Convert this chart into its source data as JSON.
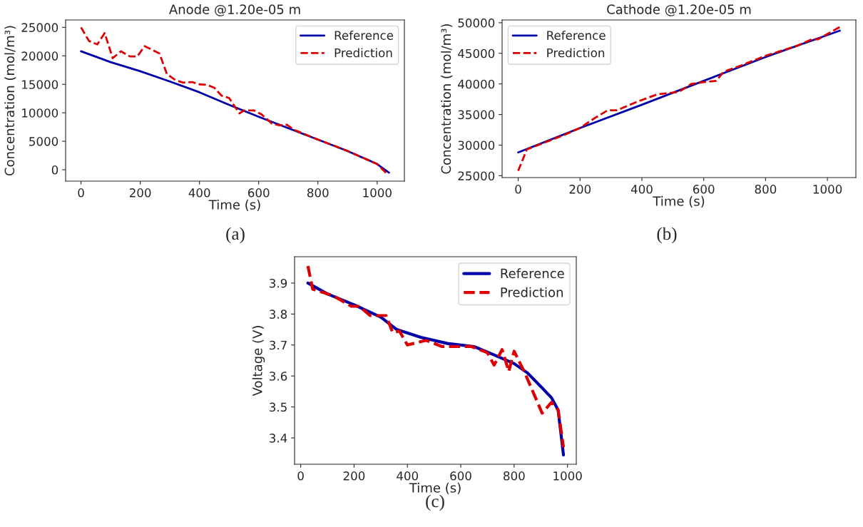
{
  "chart_data": [
    {
      "type": "line",
      "title": "Anode @1.20e-05 m",
      "xlabel": "Time (s)",
      "ylabel": "Concentration (mol/m³)",
      "annotations": [
        "(a)"
      ],
      "xlim": [
        -52,
        1092
      ],
      "ylim": [
        -2000,
        26300
      ],
      "xticks": [
        0,
        200,
        400,
        600,
        800,
        1000
      ],
      "yticks": [
        0,
        5000,
        10000,
        15000,
        20000,
        25000
      ],
      "grid": false,
      "legend": "top right",
      "series": [
        {
          "name": "Reference",
          "color": "#0000aa",
          "line_style": "solid",
          "x": [
            0,
            100,
            200,
            300,
            400,
            500,
            600,
            700,
            800,
            900,
            1000,
            1040
          ],
          "values": [
            20800,
            18900,
            17300,
            15500,
            13600,
            11400,
            9300,
            7300,
            5300,
            3300,
            1000,
            -500
          ]
        },
        {
          "name": "Prediction",
          "color": "#dd0000",
          "line_style": "dashed",
          "x": [
            0,
            27,
            55,
            80,
            107,
            135,
            165,
            190,
            215,
            265,
            290,
            320,
            345,
            375,
            400,
            425,
            450,
            475,
            500,
            535,
            550,
            585,
            610,
            645,
            670,
            695,
            720,
            800,
            900,
            1000,
            1035
          ],
          "values": [
            25000,
            22600,
            22000,
            24000,
            19600,
            20800,
            19900,
            19900,
            21700,
            20400,
            16800,
            15700,
            15300,
            15400,
            15000,
            14900,
            14400,
            13000,
            12600,
            9900,
            10400,
            10400,
            9700,
            8100,
            7800,
            7900,
            7000,
            5300,
            3300,
            1000,
            -800
          ]
        }
      ]
    },
    {
      "type": "line",
      "title": "Cathode @1.20e-05 m",
      "xlabel": "Time (s)",
      "ylabel": "Concentration (mol/m³)",
      "annotations": [
        "(b)"
      ],
      "xlim": [
        -52,
        1092
      ],
      "ylim": [
        24700,
        50450
      ],
      "xticks": [
        0,
        200,
        400,
        600,
        800,
        1000
      ],
      "yticks": [
        25000,
        30000,
        35000,
        40000,
        45000,
        50000
      ],
      "grid": false,
      "legend": "top left",
      "series": [
        {
          "name": "Reference",
          "color": "#0000aa",
          "line_style": "solid",
          "x": [
            0,
            200,
            400,
            600,
            800,
            1040
          ],
          "values": [
            28800,
            32800,
            36600,
            40500,
            44400,
            48700
          ]
        },
        {
          "name": "Prediction",
          "color": "#dd0000",
          "line_style": "dashed",
          "x": [
            0,
            28,
            100,
            150,
            200,
            250,
            290,
            320,
            380,
            450,
            520,
            560,
            600,
            640,
            665,
            720,
            800,
            900,
            950,
            970,
            1040
          ],
          "values": [
            25800,
            29300,
            30700,
            31700,
            32800,
            34500,
            35700,
            35700,
            37000,
            38300,
            38700,
            40000,
            40300,
            40500,
            42000,
            43000,
            44600,
            46200,
            47300,
            47300,
            49300
          ]
        }
      ]
    },
    {
      "type": "line",
      "xlabel": "Time (s)",
      "ylabel": "Voltage (V)",
      "annotations": [
        "(c)"
      ],
      "xlim": [
        -23,
        1033
      ],
      "ylim": [
        3.315,
        3.985
      ],
      "xticks": [
        0,
        200,
        400,
        600,
        800,
        1000
      ],
      "yticks": [
        3.4,
        3.5,
        3.6,
        3.7,
        3.8,
        3.9
      ],
      "grid": false,
      "legend": "top right",
      "series": [
        {
          "name": "Reference",
          "color": "#0000aa",
          "line_style": "solid",
          "x": [
            27,
            100,
            200,
            300,
            360,
            450,
            550,
            650,
            720,
            800,
            850,
            940,
            965,
            985
          ],
          "values": [
            3.9,
            3.865,
            3.83,
            3.79,
            3.75,
            3.725,
            3.705,
            3.695,
            3.67,
            3.64,
            3.61,
            3.53,
            3.49,
            3.345
          ]
        },
        {
          "name": "Prediction",
          "color": "#dd0000",
          "line_style": "dashed",
          "x": [
            27,
            45,
            120,
            190,
            220,
            260,
            320,
            345,
            370,
            400,
            470,
            530,
            640,
            700,
            725,
            755,
            780,
            800,
            840,
            905,
            940,
            965,
            985
          ],
          "values": [
            3.955,
            3.88,
            3.86,
            3.825,
            3.825,
            3.795,
            3.795,
            3.74,
            3.745,
            3.7,
            3.715,
            3.695,
            3.695,
            3.675,
            3.635,
            3.685,
            3.615,
            3.68,
            3.61,
            3.48,
            3.515,
            3.49,
            3.37
          ]
        }
      ]
    }
  ]
}
